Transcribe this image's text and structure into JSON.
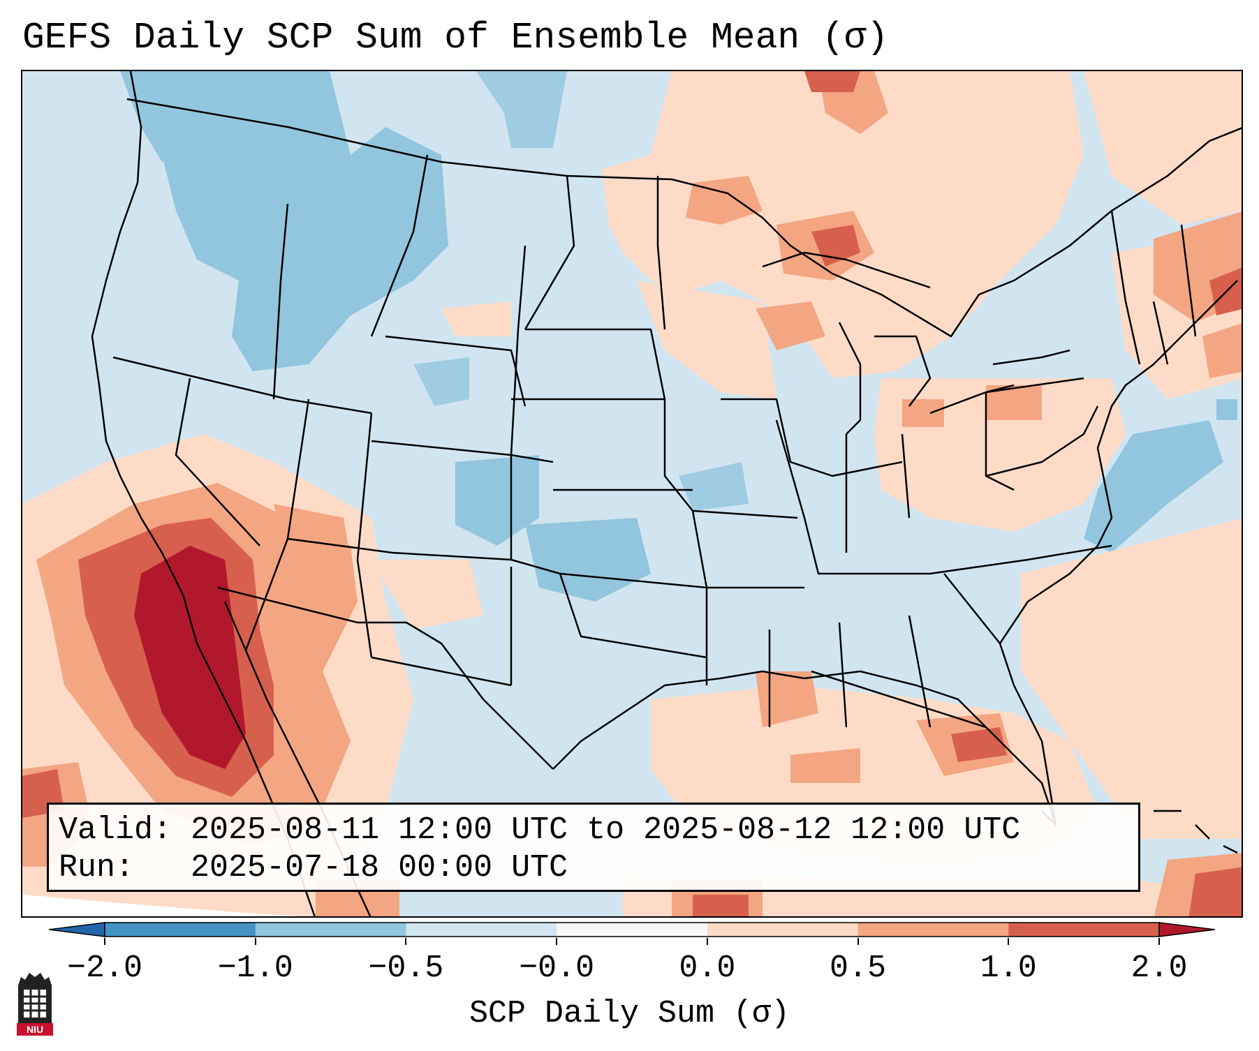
{
  "title": "GEFS Daily SCP Sum of Ensemble Mean (σ)",
  "info": {
    "valid_label": "Valid:",
    "valid_value": "2025-08-11 12:00 UTC to 2025-08-12 12:00 UTC",
    "run_label": "Run:",
    "run_value": "2025-07-18 00:00 UTC"
  },
  "colorbar": {
    "label": "SCP Daily Sum (σ)",
    "ticks": [
      "−2.0",
      "−1.0",
      "−0.5",
      "−0.0",
      "0.0",
      "0.5",
      "1.0",
      "2.0"
    ],
    "colors": [
      "#4393c3",
      "#92c5de",
      "#d1e5f0",
      "#f7f7f7",
      "#fddbc7",
      "#f4a582",
      "#d6604d"
    ],
    "extend_low_color": "#2166ac",
    "extend_high_color": "#b2182b"
  },
  "logo": {
    "text": "NIU"
  }
}
